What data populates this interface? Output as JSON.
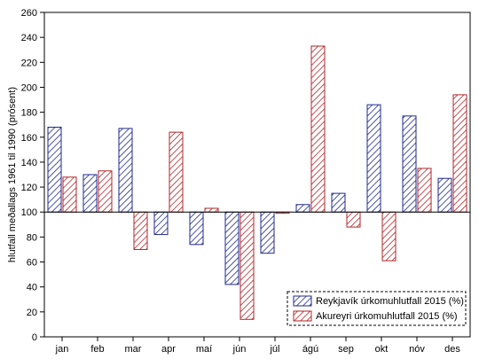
{
  "chart_data": {
    "type": "bar",
    "categories": [
      "jan",
      "feb",
      "mar",
      "apr",
      "maí",
      "jún",
      "júl",
      "ágú",
      "sep",
      "okt",
      "nóv",
      "des"
    ],
    "baseline": 100,
    "series": [
      {
        "name": "Reykjavík úrkomuhlutfall 2015 (%)",
        "values": [
          168,
          130,
          167,
          82,
          74,
          42,
          67,
          106,
          115,
          186,
          177,
          127
        ],
        "color": "#1f2a8c",
        "pattern": "diagonal-hatch"
      },
      {
        "name": "Akureyri úrkomuhlutfall 2015 (%)",
        "values": [
          128,
          133,
          70,
          164,
          103,
          14,
          99,
          233,
          88,
          61,
          135,
          194
        ],
        "color": "#b0262a",
        "pattern": "diagonal-hatch"
      }
    ],
    "xlabel": "",
    "ylabel": "hlutfall meðallags 1961 til 1990 (prósent)",
    "ylim": [
      0,
      260
    ],
    "yticks": [
      0,
      20,
      40,
      60,
      80,
      100,
      120,
      140,
      160,
      180,
      200,
      220,
      240,
      260
    ],
    "grid": false,
    "legend_position": "bottom-right"
  }
}
